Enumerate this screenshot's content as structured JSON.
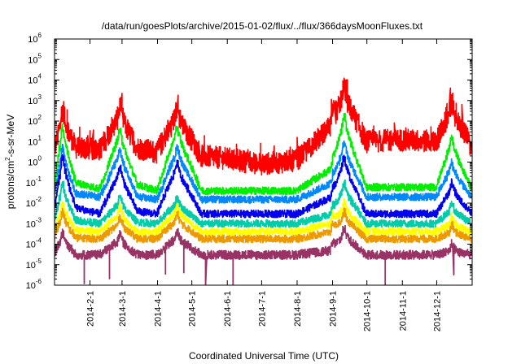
{
  "chart_data": {
    "type": "line",
    "title": "/data/run/goesPlots/archive/2015-01-02/flux/../flux/366daysMoonFluxes.txt",
    "xlabel": "Coordinated Universal Time (UTC)",
    "ylabel": "protons/cm²-s-sr-MeV",
    "ylabel_parts": {
      "pre": "protons/cm",
      "sup": "2",
      "post": "-s-sr-MeV"
    },
    "yscale": "log",
    "ylim": [
      1e-06,
      1000000.0
    ],
    "xlim": [
      "2014-01-01",
      "2015-01-01"
    ],
    "y_ticks": [
      {
        "base": "10",
        "exp": "-6",
        "value": 1e-06
      },
      {
        "base": "10",
        "exp": "-5",
        "value": 1e-05
      },
      {
        "base": "10",
        "exp": "-4",
        "value": 0.0001
      },
      {
        "base": "10",
        "exp": "-3",
        "value": 0.001
      },
      {
        "base": "10",
        "exp": "-2",
        "value": 0.01
      },
      {
        "base": "10",
        "exp": "-1",
        "value": 0.1
      },
      {
        "base": "10",
        "exp": "0",
        "value": 1
      },
      {
        "base": "10",
        "exp": "1",
        "value": 10
      },
      {
        "base": "10",
        "exp": "2",
        "value": 100
      },
      {
        "base": "10",
        "exp": "3",
        "value": 1000
      },
      {
        "base": "10",
        "exp": "4",
        "value": 10000
      },
      {
        "base": "10",
        "exp": "5",
        "value": 100000
      },
      {
        "base": "10",
        "exp": "6",
        "value": 1000000
      }
    ],
    "x_ticks": [
      {
        "label": "2014-2-1",
        "date": "2014-02-01"
      },
      {
        "label": "2014-3-1",
        "date": "2014-03-01"
      },
      {
        "label": "2014-4-1",
        "date": "2014-04-01"
      },
      {
        "label": "2014-5-1",
        "date": "2014-05-01"
      },
      {
        "label": "2014-6-1",
        "date": "2014-06-01"
      },
      {
        "label": "2014-7-1",
        "date": "2014-07-01"
      },
      {
        "label": "2014-8-1",
        "date": "2014-08-01"
      },
      {
        "label": "2014-9-1",
        "date": "2014-09-01"
      },
      {
        "label": "2014-10-1",
        "date": "2014-10-01"
      },
      {
        "label": "2014-11-1",
        "date": "2014-11-01"
      },
      {
        "label": "2014-12-1",
        "date": "2014-12-01"
      }
    ],
    "grid": false,
    "legend": "none",
    "events": [
      "2014-01-08",
      "2014-02-27",
      "2014-04-18",
      "2014-09-01",
      "2014-09-11",
      "2014-12-14"
    ],
    "series": [
      {
        "color": "#ff0000",
        "x": [
          "2014-01-01",
          "2014-01-08",
          "2014-01-20",
          "2014-02-10",
          "2014-02-27",
          "2014-03-15",
          "2014-04-01",
          "2014-04-18",
          "2014-05-10",
          "2014-06-01",
          "2014-07-01",
          "2014-08-01",
          "2014-09-01",
          "2014-09-11",
          "2014-10-01",
          "2014-11-01",
          "2014-12-01",
          "2014-12-14",
          "2015-01-01"
        ],
        "values": [
          3,
          150,
          5,
          4,
          200,
          5,
          3,
          200,
          2,
          1.5,
          0.8,
          1.2,
          60,
          2000,
          10,
          12,
          10,
          300,
          6
        ]
      },
      {
        "color": "#00ee00",
        "x": [
          "2014-01-01",
          "2014-01-08",
          "2014-01-20",
          "2014-02-10",
          "2014-02-27",
          "2014-03-15",
          "2014-04-01",
          "2014-04-18",
          "2014-05-10",
          "2014-06-01",
          "2014-07-01",
          "2014-08-01",
          "2014-09-01",
          "2014-09-11",
          "2014-10-01",
          "2014-11-01",
          "2014-12-01",
          "2014-12-14",
          "2015-01-01"
        ],
        "values": [
          0.05,
          30,
          0.1,
          0.05,
          20,
          0.08,
          0.04,
          30,
          0.04,
          0.04,
          0.04,
          0.04,
          0.5,
          100,
          0.06,
          0.06,
          0.06,
          8,
          0.05
        ]
      },
      {
        "color": "#0088ff",
        "x": [
          "2014-01-01",
          "2014-01-08",
          "2014-01-20",
          "2014-02-10",
          "2014-02-27",
          "2014-03-15",
          "2014-04-01",
          "2014-04-18",
          "2014-05-10",
          "2014-06-01",
          "2014-07-01",
          "2014-08-01",
          "2014-09-01",
          "2014-09-11",
          "2014-10-01",
          "2014-11-01",
          "2014-12-01",
          "2014-12-14",
          "2015-01-01"
        ],
        "values": [
          0.02,
          3,
          0.03,
          0.02,
          2,
          0.02,
          0.015,
          3,
          0.015,
          0.015,
          0.015,
          0.015,
          0.1,
          5,
          0.02,
          0.02,
          0.02,
          0.5,
          0.02
        ]
      },
      {
        "color": "#0000ee",
        "x": [
          "2014-01-01",
          "2014-01-08",
          "2014-01-20",
          "2014-02-10",
          "2014-02-27",
          "2014-03-15",
          "2014-04-01",
          "2014-04-18",
          "2014-05-10",
          "2014-06-01",
          "2014-07-01",
          "2014-08-01",
          "2014-09-01",
          "2014-09-11",
          "2014-10-01",
          "2014-11-01",
          "2014-12-01",
          "2014-12-14",
          "2015-01-01"
        ],
        "values": [
          0.004,
          1,
          0.006,
          0.003,
          0.3,
          0.004,
          0.003,
          0.5,
          0.003,
          0.003,
          0.003,
          0.003,
          0.02,
          1,
          0.003,
          0.003,
          0.003,
          0.05,
          0.003
        ]
      },
      {
        "color": "#00ccaa",
        "x": [
          "2014-01-01",
          "2014-01-08",
          "2014-01-20",
          "2014-02-10",
          "2014-02-27",
          "2014-03-15",
          "2014-04-01",
          "2014-04-18",
          "2014-05-10",
          "2014-06-01",
          "2014-07-01",
          "2014-08-01",
          "2014-09-01",
          "2014-09-11",
          "2014-10-01",
          "2014-11-01",
          "2014-12-01",
          "2014-12-14",
          "2015-01-01"
        ],
        "values": [
          0.0012,
          0.05,
          0.0015,
          0.001,
          0.01,
          0.0012,
          0.001,
          0.01,
          0.001,
          0.001,
          0.001,
          0.001,
          0.003,
          0.05,
          0.001,
          0.001,
          0.001,
          0.005,
          0.001
        ]
      },
      {
        "color": "#ffff00",
        "x": [
          "2014-01-01",
          "2014-01-08",
          "2014-01-20",
          "2014-02-10",
          "2014-02-27",
          "2014-03-15",
          "2014-04-01",
          "2014-04-18",
          "2014-05-10",
          "2014-06-01",
          "2014-07-01",
          "2014-08-01",
          "2014-09-01",
          "2014-09-11",
          "2014-10-01",
          "2014-11-01",
          "2014-12-01",
          "2014-12-14",
          "2015-01-01"
        ],
        "values": [
          0.0004,
          0.005,
          0.0005,
          0.0004,
          0.003,
          0.0004,
          0.0004,
          0.004,
          0.0004,
          0.0004,
          0.0004,
          0.0004,
          0.001,
          0.006,
          0.0004,
          0.0004,
          0.0004,
          0.001,
          0.0004
        ]
      },
      {
        "color": "#ee9900",
        "x": [
          "2014-01-01",
          "2014-01-08",
          "2014-01-20",
          "2014-02-10",
          "2014-02-27",
          "2014-03-15",
          "2014-04-01",
          "2014-04-18",
          "2014-05-10",
          "2014-06-01",
          "2014-07-01",
          "2014-08-01",
          "2014-09-01",
          "2014-09-11",
          "2014-10-01",
          "2014-11-01",
          "2014-12-01",
          "2014-12-14",
          "2015-01-01"
        ],
        "values": [
          0.00018,
          0.002,
          0.0002,
          0.00018,
          0.001,
          0.00018,
          0.00018,
          0.0015,
          0.00018,
          0.00018,
          0.00018,
          0.00018,
          0.0004,
          0.002,
          0.00018,
          0.00018,
          0.00018,
          0.0004,
          0.00018
        ]
      },
      {
        "color": "#993366",
        "x": [
          "2014-01-01",
          "2014-01-08",
          "2014-01-20",
          "2014-02-10",
          "2014-02-27",
          "2014-03-15",
          "2014-04-01",
          "2014-04-18",
          "2014-05-10",
          "2014-06-01",
          "2014-07-01",
          "2014-08-01",
          "2014-09-01",
          "2014-09-11",
          "2014-10-01",
          "2014-11-01",
          "2014-12-01",
          "2014-12-14",
          "2015-01-01"
        ],
        "values": [
          3e-05,
          0.0002,
          3e-05,
          3e-05,
          0.00015,
          3e-05,
          3e-05,
          0.0002,
          3e-05,
          3e-05,
          3e-05,
          3e-05,
          5e-05,
          0.0003,
          3e-05,
          3e-05,
          3e-05,
          5e-05,
          3e-05
        ]
      }
    ]
  }
}
